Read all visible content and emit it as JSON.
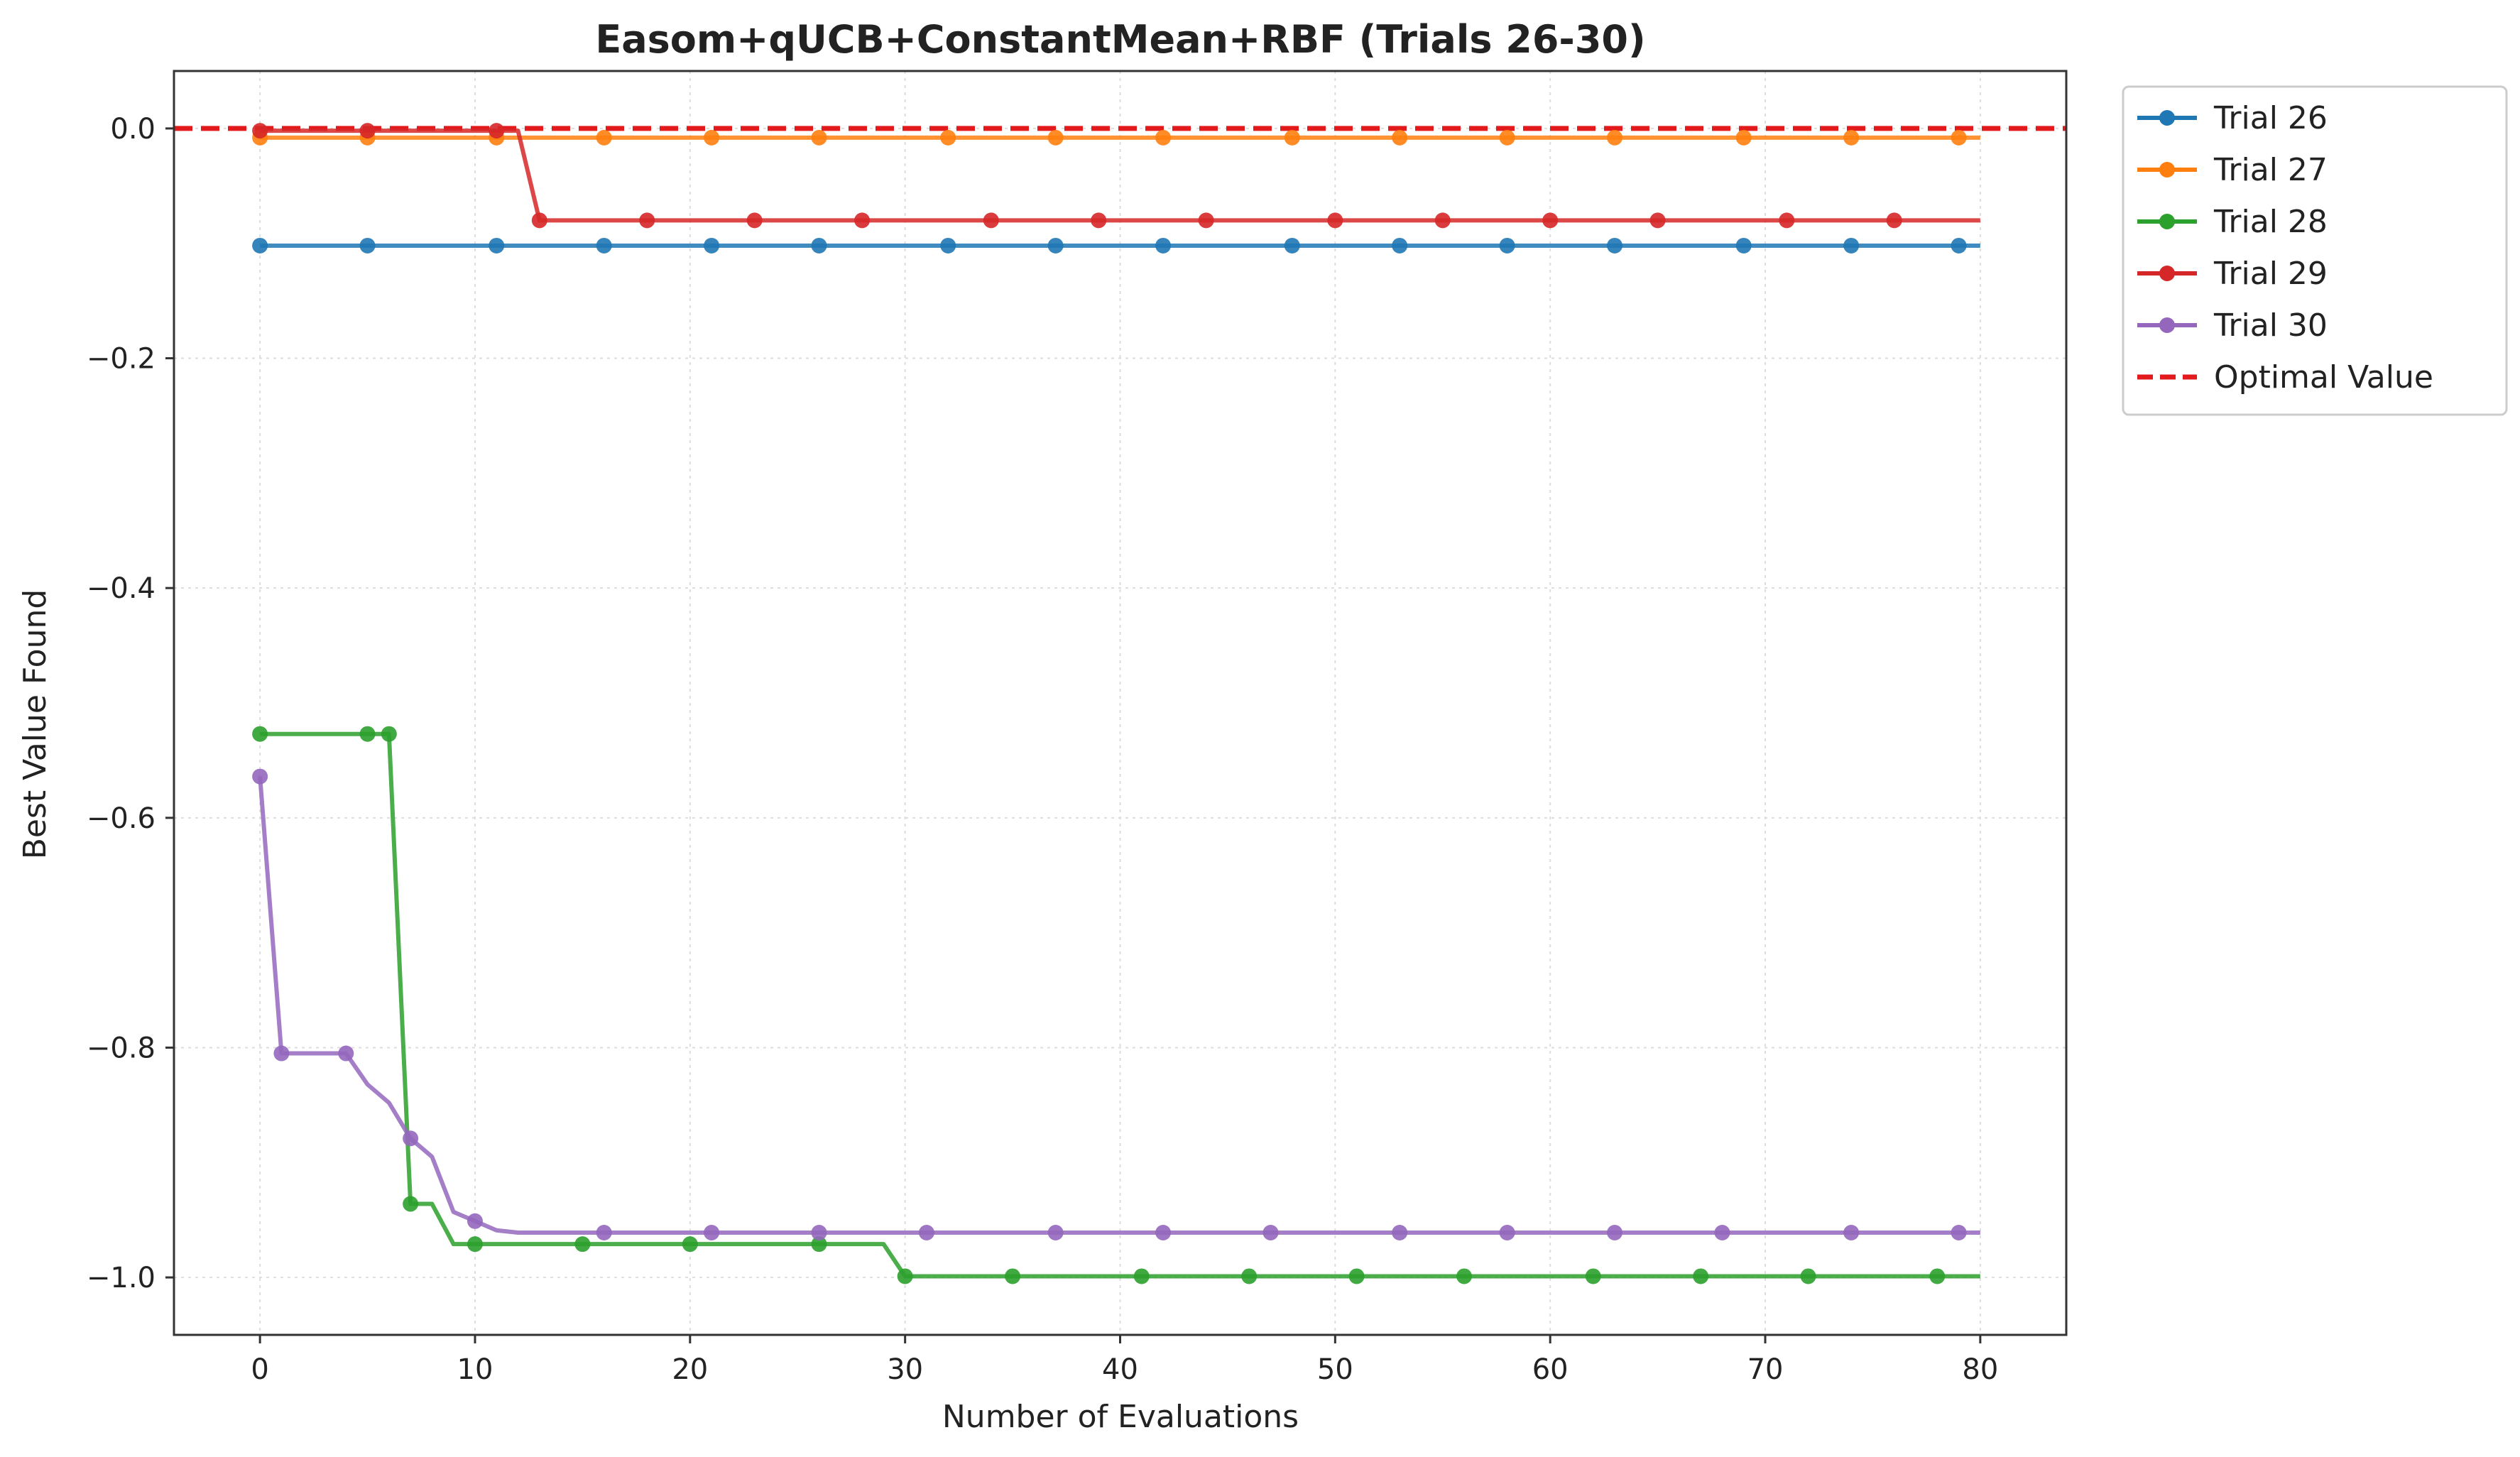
{
  "chart_data": {
    "type": "line",
    "title": "Easom+qUCB+ConstantMean+RBF (Trials 26-30)",
    "xlabel": "Number of Evaluations",
    "ylabel": "Best Value Found",
    "xlim": [
      -4,
      84
    ],
    "ylim": [
      -1.05,
      0.05
    ],
    "xticks": [
      0,
      10,
      20,
      30,
      40,
      50,
      60,
      70,
      80
    ],
    "yticks": [
      0.0,
      -0.2,
      -0.4,
      -0.6,
      -0.8,
      -1.0
    ],
    "xtick_labels": [
      "0",
      "10",
      "20",
      "30",
      "40",
      "50",
      "60",
      "70",
      "80"
    ],
    "ytick_labels": [
      "0.0",
      "−0.2",
      "−0.4",
      "−0.6",
      "−0.8",
      "−1.0"
    ],
    "grid": true,
    "legend_position": "outside-top-right",
    "series": [
      {
        "name": "Trial 26",
        "color": "#1f77b4",
        "x": [
          0,
          80
        ],
        "y": [
          -0.102,
          -0.102
        ],
        "marker_x": [
          0,
          5,
          11,
          16,
          21,
          26,
          32,
          37,
          42,
          48,
          53,
          58,
          63,
          69,
          74,
          79
        ]
      },
      {
        "name": "Trial 27",
        "color": "#ff7f0e",
        "x": [
          0,
          80
        ],
        "y": [
          -0.008,
          -0.008
        ],
        "marker_x": [
          0,
          5,
          11,
          16,
          21,
          26,
          32,
          37,
          42,
          48,
          53,
          58,
          63,
          69,
          74,
          79
        ]
      },
      {
        "name": "Trial 28",
        "color": "#2ca02c",
        "x": [
          0,
          5,
          6,
          7,
          8,
          9,
          10,
          15,
          20,
          26,
          29,
          30,
          35,
          41,
          46,
          51,
          56,
          62,
          67,
          72,
          78,
          80
        ],
        "y": [
          -0.527,
          -0.527,
          -0.527,
          -0.936,
          -0.936,
          -0.971,
          -0.971,
          -0.971,
          -0.971,
          -0.971,
          -0.971,
          -0.999,
          -0.999,
          -0.999,
          -0.999,
          -0.999,
          -0.999,
          -0.999,
          -0.999,
          -0.999,
          -0.999,
          -0.999
        ],
        "marker_x": [
          0,
          5,
          6,
          7,
          10,
          15,
          20,
          26,
          30,
          35,
          41,
          46,
          51,
          56,
          62,
          67,
          72,
          78
        ]
      },
      {
        "name": "Trial 29",
        "color": "#d62728",
        "x": [
          0,
          5,
          11,
          12,
          13,
          18,
          23,
          28,
          34,
          39,
          44,
          50,
          55,
          60,
          65,
          71,
          76,
          80
        ],
        "y": [
          -0.002,
          -0.002,
          -0.002,
          -0.002,
          -0.08,
          -0.08,
          -0.08,
          -0.08,
          -0.08,
          -0.08,
          -0.08,
          -0.08,
          -0.08,
          -0.08,
          -0.08,
          -0.08,
          -0.08,
          -0.08
        ],
        "marker_x": [
          0,
          5,
          11,
          13,
          18,
          23,
          28,
          34,
          39,
          44,
          50,
          55,
          60,
          65,
          71,
          76
        ]
      },
      {
        "name": "Trial 30",
        "color": "#9467bd",
        "x": [
          0,
          1,
          4,
          5,
          6,
          7,
          8,
          9,
          10,
          11,
          12,
          16,
          21,
          26,
          31,
          37,
          42,
          47,
          53,
          58,
          63,
          68,
          74,
          80
        ],
        "y": [
          -0.564,
          -0.805,
          -0.805,
          -0.832,
          -0.848,
          -0.879,
          -0.895,
          -0.943,
          -0.951,
          -0.959,
          -0.961,
          -0.961,
          -0.961,
          -0.961,
          -0.961,
          -0.961,
          -0.961,
          -0.961,
          -0.961,
          -0.961,
          -0.961,
          -0.961,
          -0.961,
          -0.961
        ],
        "marker_x": [
          0,
          1,
          4,
          7,
          10,
          16,
          21,
          26,
          31,
          37,
          42,
          47,
          53,
          58,
          63,
          68,
          74,
          79
        ]
      }
    ],
    "reference_line": {
      "name": "Optimal Value",
      "y": 0.0,
      "color": "#e31a1c",
      "style": "dashed"
    }
  }
}
